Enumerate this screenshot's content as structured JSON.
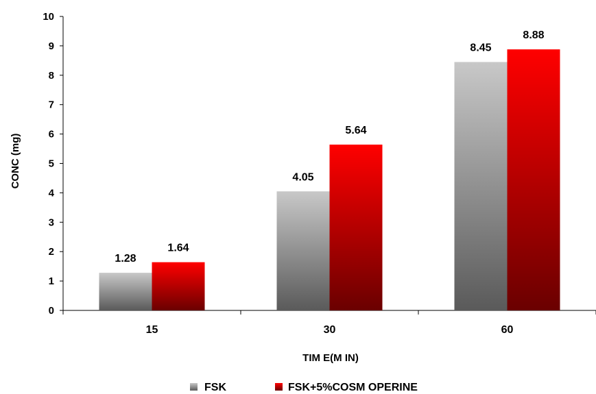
{
  "chart_data": {
    "type": "bar",
    "categories": [
      "15",
      "30",
      "60"
    ],
    "series": [
      {
        "name": "FSK",
        "values": [
          1.28,
          4.05,
          8.45
        ],
        "color": "#a8a8a8"
      },
      {
        "name": "FSK+5%COSM OPERINE",
        "values": [
          1.64,
          5.64,
          8.88
        ],
        "color": "#e00000"
      }
    ],
    "data_labels": [
      [
        "1.28",
        "4.05",
        "8.45"
      ],
      [
        "1.64",
        "5.64",
        "8.88"
      ]
    ],
    "xlabel": "TIM E(M IN)",
    "ylabel": "CONC (mg)",
    "ylim": [
      0,
      10
    ],
    "yticks": [
      "0",
      "1",
      "2",
      "3",
      "4",
      "5",
      "6",
      "7",
      "8",
      "9",
      "10"
    ],
    "grid": false,
    "legend": "bottom"
  }
}
